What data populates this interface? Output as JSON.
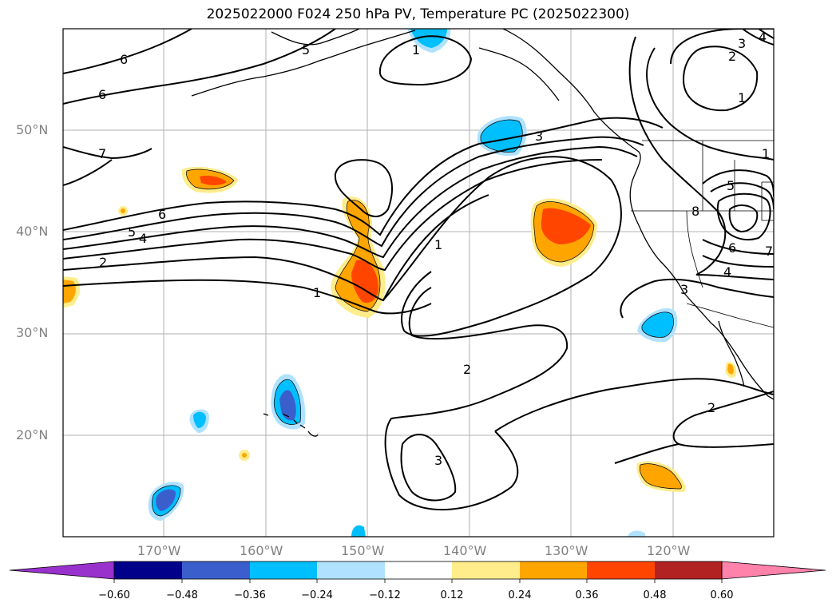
{
  "title": "2025022000 F024 250 hPa PV, Temperature PC (2025022300)",
  "map": {
    "lat_gridlines": [
      "50°N",
      "40°N",
      "30°N",
      "20°N"
    ],
    "lon_gridlines": [
      "170°W",
      "160°W",
      "150°W",
      "140°W",
      "130°W",
      "120°W"
    ],
    "contour_labels": [
      "6",
      "6",
      "5",
      "7",
      "6",
      "5",
      "4",
      "2",
      "1",
      "1",
      "3",
      "1",
      "2",
      "3",
      "1",
      "2",
      "3",
      "4",
      "7",
      "5",
      "8",
      "6",
      "4",
      "3",
      "2",
      "1"
    ]
  },
  "colorbar": {
    "ticks": [
      "−0.60",
      "−0.48",
      "−0.36",
      "−0.24",
      "−0.12",
      "0.12",
      "0.24",
      "0.36",
      "0.48",
      "0.60"
    ],
    "colors": [
      "#9932cc",
      "#00008b",
      "#3a5fcd",
      "#00bfff",
      "#b0e2ff",
      "#ffffff",
      "#ffec8b",
      "#ffa500",
      "#ff4500",
      "#b22222",
      "#ff82ab"
    ]
  }
}
